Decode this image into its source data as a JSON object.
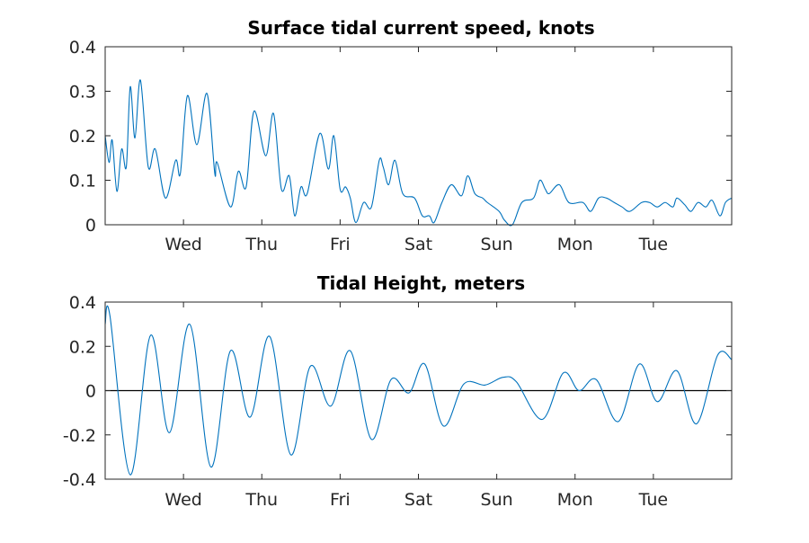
{
  "chart_data": [
    {
      "type": "line",
      "title": "Surface tidal current speed, knots",
      "xlabel": "",
      "ylabel": "",
      "ylim": [
        0,
        0.4
      ],
      "yticks": [
        0,
        0.1,
        0.2,
        0.3,
        0.4
      ],
      "ytick_labels": [
        "0",
        "0.1",
        "0.2",
        "0.3",
        "0.4"
      ],
      "xlim": [
        0,
        8
      ],
      "xtick_positions": [
        1,
        2,
        3,
        4,
        5,
        6,
        7
      ],
      "xtick_labels": [
        "Wed",
        "Thu",
        "Fri",
        "Sat",
        "Sun",
        "Mon",
        "Tue"
      ],
      "grid": false,
      "zero_line": false,
      "series": [
        {
          "color": "#0072BD",
          "x": [
            0,
            0.05,
            0.09,
            0.15,
            0.21,
            0.27,
            0.32,
            0.38,
            0.45,
            0.55,
            0.64,
            0.77,
            0.9,
            0.96,
            1.05,
            1.17,
            1.3,
            1.4,
            1.43,
            1.6,
            1.7,
            1.8,
            1.9,
            2.05,
            2.15,
            2.25,
            2.35,
            2.42,
            2.5,
            2.58,
            2.74,
            2.85,
            2.92,
            3,
            3.07,
            3.13,
            3.2,
            3.3,
            3.4,
            3.5,
            3.55,
            3.62,
            3.7,
            3.8,
            3.95,
            4.05,
            4.14,
            4.2,
            4.3,
            4.42,
            4.55,
            4.63,
            4.72,
            4.82,
            4.88,
            5.03,
            5.1,
            5.2,
            5.32,
            5.47,
            5.55,
            5.62,
            5.67,
            5.8,
            5.92,
            6.1,
            6.2,
            6.3,
            6.4,
            6.5,
            6.6,
            6.7,
            6.85,
            6.95,
            7.05,
            7.15,
            7.25,
            7.3,
            7.4,
            7.48,
            7.57,
            7.67,
            7.75,
            7.85,
            7.92,
            8
          ],
          "y": [
            0.2,
            0.14,
            0.19,
            0.075,
            0.17,
            0.13,
            0.31,
            0.195,
            0.325,
            0.13,
            0.17,
            0.06,
            0.145,
            0.115,
            0.29,
            0.18,
            0.295,
            0.115,
            0.14,
            0.04,
            0.12,
            0.085,
            0.255,
            0.155,
            0.25,
            0.08,
            0.11,
            0.02,
            0.085,
            0.07,
            0.205,
            0.125,
            0.2,
            0.08,
            0.085,
            0.06,
            0.005,
            0.05,
            0.04,
            0.145,
            0.13,
            0.09,
            0.145,
            0.07,
            0.06,
            0.02,
            0.02,
            0.005,
            0.05,
            0.09,
            0.065,
            0.11,
            0.07,
            0.06,
            0.05,
            0.03,
            0.01,
            0,
            0.05,
            0.06,
            0.1,
            0.08,
            0.07,
            0.09,
            0.05,
            0.05,
            0.03,
            0.06,
            0.06,
            0.05,
            0.04,
            0.03,
            0.05,
            0.05,
            0.04,
            0.05,
            0.04,
            0.06,
            0.045,
            0.03,
            0.05,
            0.04,
            0.055,
            0.02,
            0.05,
            0.06
          ]
        }
      ]
    },
    {
      "type": "line",
      "title": "Tidal Height, meters",
      "xlabel": "",
      "ylabel": "",
      "ylim": [
        -0.4,
        0.4
      ],
      "yticks": [
        -0.4,
        -0.2,
        0,
        0.2,
        0.4
      ],
      "ytick_labels": [
        "-0.4",
        "-0.2",
        "0",
        "0.2",
        "0.4"
      ],
      "xlim": [
        0,
        8
      ],
      "xtick_positions": [
        1,
        2,
        3,
        4,
        5,
        6,
        7
      ],
      "xtick_labels": [
        "Wed",
        "Thu",
        "Fri",
        "Sat",
        "Sun",
        "Mon",
        "Tue"
      ],
      "grid": false,
      "zero_line": true,
      "series": [
        {
          "color": "#0072BD",
          "x": [
            0,
            0.06,
            0.32,
            0.58,
            0.82,
            1.08,
            1.35,
            1.6,
            1.85,
            2.1,
            2.37,
            2.62,
            2.88,
            3.13,
            3.4,
            3.65,
            3.88,
            4.08,
            4.32,
            4.58,
            4.85,
            5.08,
            5.25,
            5.58,
            5.85,
            6.05,
            6.27,
            6.55,
            6.82,
            7.05,
            7.3,
            7.55,
            7.82,
            8
          ],
          "y": [
            0.3,
            0.34,
            -0.38,
            0.25,
            -0.19,
            0.3,
            -0.345,
            0.18,
            -0.12,
            0.245,
            -0.29,
            0.11,
            -0.07,
            0.18,
            -0.22,
            0.05,
            -0.01,
            0.12,
            -0.16,
            0.03,
            0.025,
            0.06,
            0.04,
            -0.13,
            0.08,
            0.0,
            0.05,
            -0.14,
            0.12,
            -0.05,
            0.09,
            -0.15,
            0.16,
            0.14
          ]
        }
      ]
    }
  ]
}
